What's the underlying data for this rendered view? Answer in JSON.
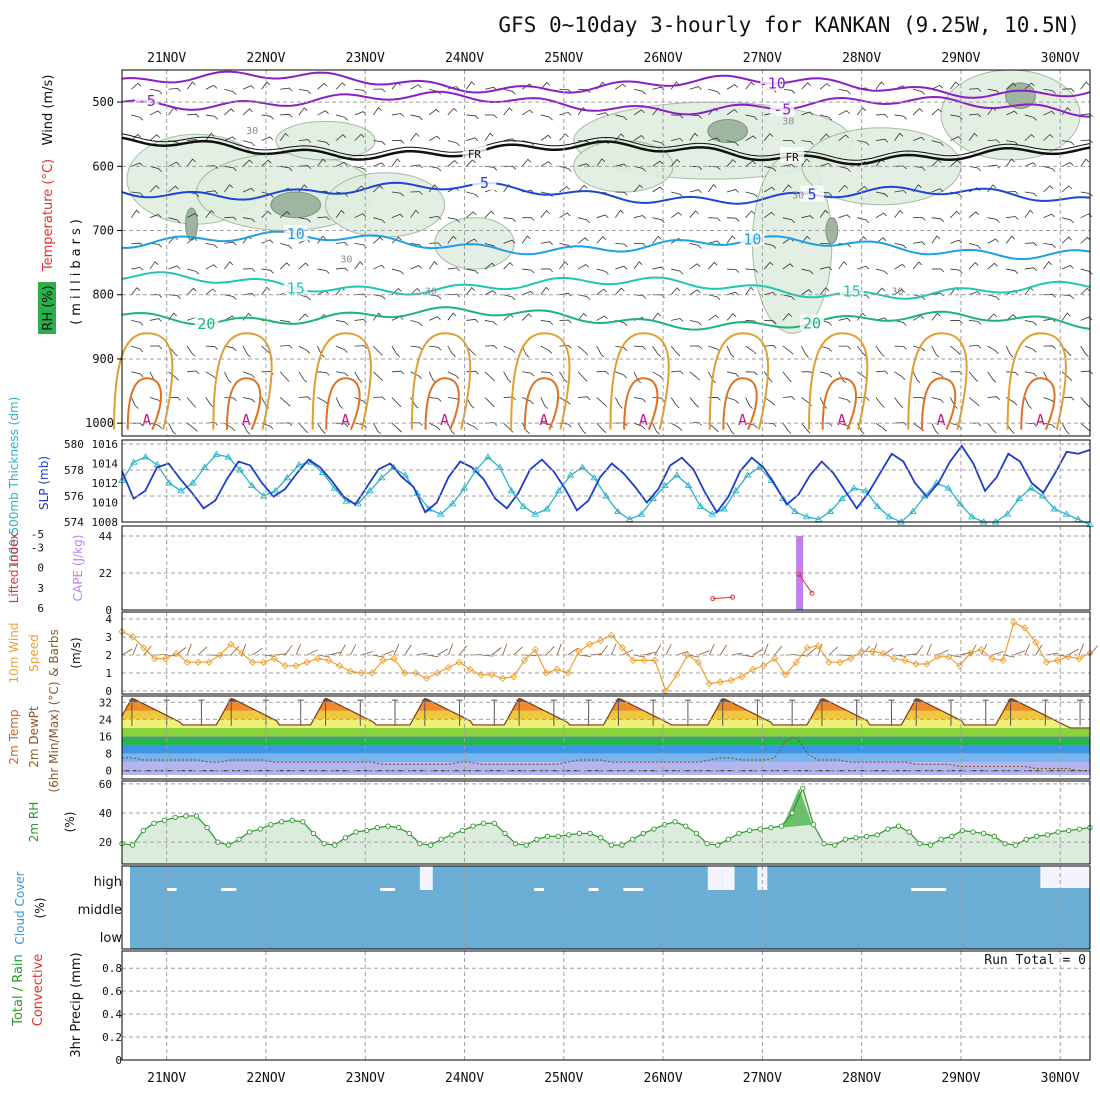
{
  "chart_data": {
    "type": "meteogram",
    "title": "GFS 0~10day 3-hourly for KANKAN (9.25W, 10.5N)",
    "dates": [
      "21NOV",
      "22NOV",
      "23NOV",
      "24NOV",
      "25NOV",
      "26NOV",
      "27NOV",
      "28NOV",
      "29NOV",
      "30NOV"
    ],
    "x_range_days": [
      0.55,
      10.3
    ],
    "panels": {
      "profile": {
        "ylabels": [
          "Wind (m/s)",
          "Temperature (°C)",
          "RH (%)",
          "(millibars)"
        ],
        "yticks": [
          500,
          600,
          700,
          800,
          900,
          1000
        ],
        "ylim": [
          450,
          1020
        ],
        "isotherms": [
          {
            "label": "-5",
            "base": 495,
            "color": "#8c1ec8"
          },
          {
            "label": "-10",
            "base": 465,
            "color": "#8c1ec8"
          },
          {
            "label": "FR",
            "base": 570,
            "color": "#111111"
          },
          {
            "label": "5",
            "base": 635,
            "color": "#1e46d2"
          },
          {
            "label": "10",
            "base": 715,
            "color": "#1ea0e6"
          },
          {
            "label": "15",
            "base": 780,
            "color": "#1ec8b4"
          },
          {
            "label": "20",
            "base": 830,
            "color": "#1eb478"
          }
        ],
        "contour_label": "30",
        "surface_label": "A"
      },
      "pressure": {
        "ylabel_left": "1000-500mb Thickness (dm)",
        "ylabel_right": "SLP (mb)",
        "thickness_ticks": [
          574,
          576,
          578,
          580
        ],
        "slp_ticks": [
          1008,
          1010,
          1012,
          1014,
          1016
        ],
        "thickness": [
          577.2,
          578.6,
          579.0,
          578.4,
          577.0,
          576.4,
          577.0,
          578.2,
          579.2,
          579.0,
          578.0,
          576.8,
          576.0,
          576.4,
          577.4,
          578.4,
          578.6,
          577.8,
          576.6,
          575.6,
          575.4,
          576.4,
          577.4,
          578.2,
          577.6,
          576.2,
          575.0,
          574.6,
          575.4,
          576.6,
          578.0,
          579.0,
          578.2,
          576.4,
          575.2,
          574.6,
          575.0,
          576.4,
          577.6,
          578.2,
          577.4,
          576.0,
          574.8,
          574.2,
          574.6,
          575.8,
          576.8,
          577.6,
          576.8,
          575.2,
          574.6,
          575.0,
          576.4,
          577.6,
          578.2,
          577.2,
          575.8,
          574.8,
          574.4,
          574.2,
          574.8,
          575.8,
          576.6,
          576.4,
          575.2,
          574.4,
          574.0,
          574.8,
          576.0,
          577.0,
          576.6,
          575.4,
          574.4,
          574.0,
          574.0,
          574.6,
          575.8,
          576.6,
          576.0,
          575.0,
          574.6,
          574.2,
          573.8
        ],
        "slp": [
          1013.2,
          1010.4,
          1011.2,
          1013.6,
          1014.0,
          1012.4,
          1011.0,
          1009.4,
          1010.2,
          1012.4,
          1014.2,
          1013.8,
          1012.0,
          1010.6,
          1011.4,
          1013.0,
          1014.4,
          1013.6,
          1012.2,
          1010.6,
          1009.8,
          1011.6,
          1013.4,
          1014.0,
          1012.6,
          1011.6,
          1009.0,
          1010.0,
          1012.6,
          1014.2,
          1013.6,
          1012.4,
          1010.4,
          1009.4,
          1011.0,
          1013.4,
          1014.4,
          1013.2,
          1011.4,
          1009.2,
          1010.2,
          1012.6,
          1014.0,
          1013.0,
          1011.6,
          1010.0,
          1011.4,
          1013.8,
          1014.6,
          1013.4,
          1011.0,
          1009.0,
          1010.6,
          1013.2,
          1014.6,
          1013.6,
          1011.8,
          1009.8,
          1010.8,
          1012.8,
          1014.2,
          1013.0,
          1011.2,
          1009.4,
          1011.0,
          1013.0,
          1015.0,
          1014.2,
          1012.0,
          1010.6,
          1012.0,
          1014.2,
          1015.8,
          1014.0,
          1011.2,
          1012.6,
          1015.0,
          1014.2,
          1012.0,
          1011.0,
          1013.0,
          1015.2,
          1015.0,
          1015.4
        ]
      },
      "instability": {
        "ylabel_left": "Lifted Index",
        "ylabel_right": "CAPE (J/kg)",
        "li_ticks": [
          "-5",
          "-3",
          "0",
          "3",
          "6"
        ],
        "cape_ticks": [
          0,
          22,
          44
        ],
        "cape_bar": {
          "day": 7.37,
          "value": 44
        },
        "li_points": [
          {
            "day": 6.5,
            "value": 4.6
          },
          {
            "day": 6.7,
            "value": 4.4
          },
          {
            "day": 7.37,
            "value": 1.0
          },
          {
            "day": 7.5,
            "value": 3.8
          }
        ]
      },
      "wind10m": {
        "ylabel": "10m Wind Speed & Barbs (m/s)",
        "yticks": [
          0,
          1,
          2,
          3,
          4
        ],
        "speed": [
          3.3,
          3.0,
          2.4,
          1.8,
          1.8,
          2.1,
          1.6,
          1.6,
          1.6,
          2.0,
          2.6,
          2.1,
          1.6,
          1.6,
          1.8,
          1.4,
          1.4,
          1.6,
          1.8,
          1.7,
          1.4,
          1.1,
          1.0,
          1.0,
          1.7,
          1.8,
          1.0,
          1.0,
          0.7,
          1.0,
          1.3,
          1.6,
          1.2,
          0.9,
          0.9,
          0.7,
          0.8,
          1.7,
          2.3,
          1.0,
          1.2,
          1.0,
          2.2,
          2.6,
          2.8,
          3.1,
          2.4,
          1.7,
          1.7,
          1.7,
          0.0,
          0.9,
          2.0,
          1.6,
          0.4,
          0.5,
          0.6,
          0.8,
          1.2,
          1.4,
          1.8,
          0.9,
          1.6,
          2.4,
          2.5,
          1.6,
          1.6,
          1.8,
          2.2,
          2.2,
          2.1,
          1.8,
          1.7,
          1.5,
          1.5,
          1.9,
          1.9,
          1.4,
          2.1,
          2.3,
          1.8,
          1.7,
          3.8,
          3.5,
          2.7,
          1.6,
          1.7,
          1.9,
          1.8,
          2.1
        ]
      },
      "temp2m": {
        "ylabel": "2m Temp / 2m DewPt (6hr Min/Max) (°C)",
        "yticks": [
          0,
          8,
          16,
          24,
          32
        ],
        "max_days": [
          0.65,
          1.65,
          2.6,
          3.6,
          4.55,
          5.55,
          6.6,
          7.6,
          8.55,
          9.5
        ],
        "tmax": 34,
        "tmin": 20,
        "dewpt": [
          6,
          6,
          5,
          5,
          5,
          5,
          5,
          5,
          4,
          4,
          5,
          5,
          5,
          5,
          4,
          4,
          4,
          4,
          4,
          4,
          4,
          4,
          4,
          4,
          3,
          3,
          3,
          3,
          3,
          3,
          3,
          4,
          4,
          3,
          3,
          3,
          3,
          3,
          3,
          3,
          3,
          4,
          5,
          5,
          5,
          4,
          4,
          4,
          4,
          4,
          4,
          4,
          4,
          4,
          5,
          6,
          6,
          5,
          5,
          5,
          6,
          14,
          16,
          8,
          5,
          5,
          5,
          4,
          4,
          4,
          4,
          4,
          4,
          3,
          3,
          3,
          3,
          2,
          2,
          2,
          2,
          2,
          2,
          2,
          1,
          1,
          1,
          1,
          0,
          0
        ]
      },
      "rh2m": {
        "ylabel": "2m RH (%)",
        "yticks": [
          20,
          40,
          60
        ],
        "values": [
          19,
          18,
          28,
          33,
          35,
          37,
          38,
          38,
          30,
          20,
          18,
          22,
          27,
          29,
          32,
          34,
          35,
          34,
          26,
          19,
          18,
          23,
          27,
          28,
          30,
          31,
          30,
          26,
          19,
          18,
          22,
          25,
          28,
          31,
          33,
          33,
          26,
          19,
          18,
          22,
          24,
          24,
          25,
          26,
          26,
          23,
          18,
          18,
          22,
          26,
          29,
          32,
          34,
          31,
          26,
          19,
          18,
          22,
          26,
          28,
          29,
          30,
          31,
          40,
          57,
          32,
          19,
          18,
          22,
          23,
          24,
          25,
          29,
          31,
          27,
          19,
          18,
          22,
          24,
          28,
          27,
          26,
          24,
          19,
          18,
          22,
          24,
          25,
          27,
          28,
          29,
          30
        ]
      },
      "cloud": {
        "ylabel": "Cloud Cover (%)",
        "levels": [
          "high",
          "middle",
          "low"
        ],
        "high_gaps_days": [
          [
            6.45,
            6.6
          ],
          [
            6.6,
            6.72
          ],
          [
            6.95,
            7.05
          ],
          [
            3.55,
            3.68
          ]
        ]
      },
      "precip": {
        "ylabel_left": "Total / Rain",
        "ylabel_left2": "Convective",
        "ylabel": "3hr Precip (mm)",
        "yticks": [
          "0",
          "0.2",
          "0.4",
          "0.6",
          "0.8"
        ],
        "run_total": "Run Total = 0"
      }
    }
  }
}
